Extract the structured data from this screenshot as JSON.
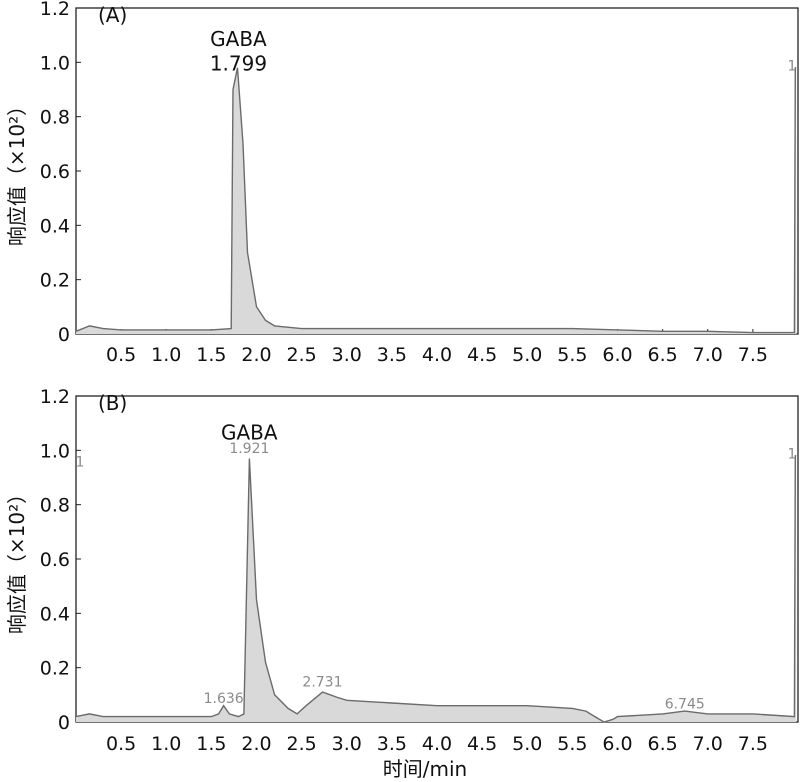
{
  "chart_data": [
    {
      "type": "area",
      "panel_label": "(A)",
      "ylabel": "响应值（×10²）",
      "xlabel": "",
      "xlim": [
        0,
        8.0
      ],
      "ylim": [
        0,
        1.2
      ],
      "xticks": [
        0.5,
        1.0,
        1.5,
        2.0,
        2.5,
        3.0,
        3.5,
        4.0,
        4.5,
        5.0,
        5.5,
        6.0,
        6.5,
        7.0,
        7.5
      ],
      "xtick_labels": [
        "0.5",
        "1.0",
        "1.5",
        "2.0",
        "2.5",
        "3.0",
        "3.5",
        "4.0",
        "4.5",
        "5.0",
        "5.5",
        "6.0",
        "6.5",
        "7.0",
        "7.5"
      ],
      "yticks": [
        0,
        0.2,
        0.4,
        0.6,
        0.8,
        1.0,
        1.2
      ],
      "ytick_labels": [
        "0",
        "0.2",
        "0.4",
        "0.6",
        "0.8",
        "1.0",
        "1.2"
      ],
      "series": [
        {
          "x": [
            0.0,
            0.15,
            0.3,
            0.5,
            1.0,
            1.5,
            1.72,
            1.74,
            1.79,
            1.85,
            1.9,
            2.0,
            2.1,
            2.2,
            2.5,
            3.0,
            3.5,
            4.0,
            4.5,
            5.0,
            5.5,
            6.0,
            6.5,
            7.0,
            7.5,
            7.96,
            7.97,
            7.98
          ],
          "y": [
            0.01,
            0.03,
            0.02,
            0.015,
            0.015,
            0.015,
            0.02,
            0.9,
            0.98,
            0.7,
            0.3,
            0.1,
            0.05,
            0.03,
            0.02,
            0.02,
            0.02,
            0.02,
            0.02,
            0.02,
            0.02,
            0.015,
            0.01,
            0.01,
            0.005,
            0.005,
            0.98,
            0.98
          ]
        }
      ],
      "annotations": [
        {
          "text": "GABA",
          "x": 1.8,
          "y": 1.06
        },
        {
          "text": "1.799",
          "x": 1.8,
          "y": 0.97
        }
      ],
      "right_edge_label": "1"
    },
    {
      "type": "area",
      "panel_label": "(B)",
      "ylabel": "响应值（×10²）",
      "xlabel": "时间/min",
      "xlim": [
        0,
        8.0
      ],
      "ylim": [
        0,
        1.2
      ],
      "xticks": [
        0.5,
        1.0,
        1.5,
        2.0,
        2.5,
        3.0,
        3.5,
        4.0,
        4.5,
        5.0,
        5.5,
        6.0,
        6.5,
        7.0,
        7.5
      ],
      "xtick_labels": [
        "0.5",
        "1.0",
        "1.5",
        "2.0",
        "2.5",
        "3.0",
        "3.5",
        "4.0",
        "4.5",
        "5.0",
        "5.5",
        "6.0",
        "6.5",
        "7.0",
        "7.5"
      ],
      "yticks": [
        0,
        0.2,
        0.4,
        0.6,
        0.8,
        1.0,
        1.2
      ],
      "ytick_labels": [
        "0",
        "0.2",
        "0.4",
        "0.6",
        "0.8",
        "1.0",
        "1.2"
      ],
      "series": [
        {
          "x": [
            0.0,
            0.15,
            0.3,
            0.5,
            1.0,
            1.5,
            1.58,
            1.636,
            1.7,
            1.8,
            1.86,
            1.921,
            2.0,
            2.1,
            2.2,
            2.35,
            2.45,
            2.55,
            2.731,
            2.9,
            3.0,
            3.5,
            4.0,
            4.5,
            5.0,
            5.5,
            5.65,
            5.75,
            5.85,
            5.95,
            6.0,
            6.5,
            6.745,
            7.0,
            7.5,
            7.96,
            7.97,
            7.98
          ],
          "y": [
            0.02,
            0.03,
            0.02,
            0.02,
            0.02,
            0.02,
            0.03,
            0.06,
            0.03,
            0.02,
            0.03,
            0.97,
            0.45,
            0.22,
            0.1,
            0.05,
            0.03,
            0.06,
            0.11,
            0.09,
            0.08,
            0.07,
            0.06,
            0.06,
            0.06,
            0.05,
            0.04,
            0.02,
            0.0,
            0.01,
            0.02,
            0.03,
            0.04,
            0.03,
            0.03,
            0.02,
            0.98,
            0.98
          ]
        }
      ],
      "annotations": [
        {
          "text": "GABA",
          "x": 1.92,
          "y": 1.04
        }
      ],
      "peak_labels": [
        {
          "text": "1.636",
          "x": 1.636,
          "y": 0.07
        },
        {
          "text": "1.921",
          "x": 1.921,
          "y": 0.99
        },
        {
          "text": "2.731",
          "x": 2.731,
          "y": 0.13
        },
        {
          "text": "6.745",
          "x": 6.745,
          "y": 0.05
        }
      ],
      "left_edge_label": "1",
      "right_edge_label": "1"
    }
  ]
}
